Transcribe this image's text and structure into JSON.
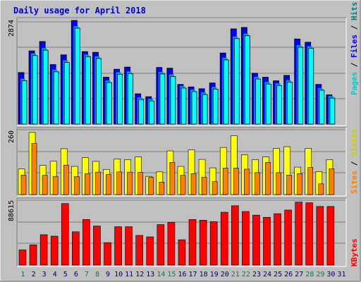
{
  "chart_data": [
    {
      "type": "bar",
      "title": "Daily usage for April 2018",
      "ylabel_parts": [
        "Pages",
        "Files",
        "Hits"
      ],
      "ymax_label": "2874",
      "ylim": [
        0,
        2874
      ],
      "categories": [
        "1",
        "2",
        "3",
        "4",
        "5",
        "6",
        "7",
        "8",
        "9",
        "10",
        "11",
        "12",
        "13",
        "14",
        "15",
        "16",
        "17",
        "18",
        "19",
        "20",
        "21",
        "22",
        "23",
        "24",
        "25",
        "26",
        "27",
        "28",
        "29",
        "30",
        "31"
      ],
      "series": [
        {
          "name": "Hits",
          "color": "#0000ff",
          "values": [
            1430,
            2030,
            2290,
            1650,
            1920,
            2874,
            2010,
            1990,
            1300,
            1520,
            1580,
            840,
            760,
            1570,
            1550,
            1100,
            1030,
            980,
            1140,
            1970,
            2640,
            2680,
            1410,
            1300,
            1200,
            1350,
            2360,
            2270,
            1100,
            810,
            0
          ]
        },
        {
          "name": "Files",
          "color": "#0099cc",
          "values": [
            1200,
            1900,
            2050,
            1450,
            1710,
            2660,
            1870,
            1820,
            1150,
            1380,
            1400,
            680,
            640,
            1390,
            1320,
            1000,
            900,
            820,
            970,
            1780,
            2370,
            2450,
            1250,
            1110,
            1070,
            1160,
            2130,
            2100,
            940,
            720,
            0
          ]
        },
        {
          "name": "Pages",
          "color": "#00ffff",
          "values": [
            1200,
            1900,
            2050,
            1450,
            1710,
            2660,
            1870,
            1820,
            1150,
            1380,
            1400,
            680,
            640,
            1390,
            1320,
            1000,
            900,
            820,
            970,
            1780,
            2370,
            2450,
            1250,
            1110,
            1070,
            1160,
            2130,
            2100,
            940,
            720,
            0
          ]
        }
      ]
    },
    {
      "type": "bar",
      "ylabel_parts": [
        "Sites",
        "Visits"
      ],
      "ymax_label": "260",
      "ylim": [
        0,
        260
      ],
      "categories": [
        "1",
        "2",
        "3",
        "4",
        "5",
        "6",
        "7",
        "8",
        "9",
        "10",
        "11",
        "12",
        "13",
        "14",
        "15",
        "16",
        "17",
        "18",
        "19",
        "20",
        "21",
        "22",
        "23",
        "24",
        "25",
        "26",
        "27",
        "28",
        "29",
        "30",
        "31"
      ],
      "series": [
        {
          "name": "Visits",
          "color": "#ffff00",
          "values": [
            103,
            249,
            117,
            134,
            184,
            113,
            148,
            133,
            101,
            143,
            140,
            151,
            73,
            91,
            175,
            113,
            179,
            141,
            107,
            189,
            236,
            159,
            140,
            151,
            185,
            192,
            110,
            185,
            92,
            140,
            0
          ]
        },
        {
          "name": "Sites",
          "color": "#ff8000",
          "values": [
            78,
            205,
            77,
            73,
            118,
            72,
            84,
            90,
            81,
            91,
            90,
            89,
            69,
            50,
            129,
            77,
            84,
            70,
            52,
            106,
            106,
            102,
            88,
            129,
            88,
            78,
            84,
            109,
            43,
            104,
            0
          ]
        }
      ]
    },
    {
      "type": "bar",
      "ylabel_parts": [
        "KBytes"
      ],
      "ymax_label": "88615",
      "ylim": [
        0,
        88615
      ],
      "categories": [
        "1",
        "2",
        "3",
        "4",
        "5",
        "6",
        "7",
        "8",
        "9",
        "10",
        "11",
        "12",
        "13",
        "14",
        "15",
        "16",
        "17",
        "18",
        "19",
        "20",
        "21",
        "22",
        "23",
        "24",
        "25",
        "26",
        "27",
        "28",
        "29",
        "30",
        "31"
      ],
      "series": [
        {
          "name": "KBytes",
          "color": "#ff0000",
          "values": [
            21000,
            28000,
            42000,
            40000,
            85000,
            46000,
            63000,
            54000,
            31000,
            53000,
            53000,
            41000,
            39000,
            56000,
            59000,
            35000,
            63000,
            62000,
            60000,
            73000,
            82000,
            74000,
            69000,
            66000,
            71000,
            76000,
            87000,
            86000,
            81000,
            81000,
            0
          ]
        }
      ]
    }
  ],
  "weekend_days": [
    "1",
    "7",
    "8",
    "14",
    "15",
    "21",
    "22",
    "28",
    "29"
  ],
  "colors": {
    "background": "#c0c0c0",
    "border": "#808080",
    "title": "#0000cc",
    "grid": "#808080",
    "weekday_label": "#000080",
    "weekend_label": "#00805c"
  }
}
